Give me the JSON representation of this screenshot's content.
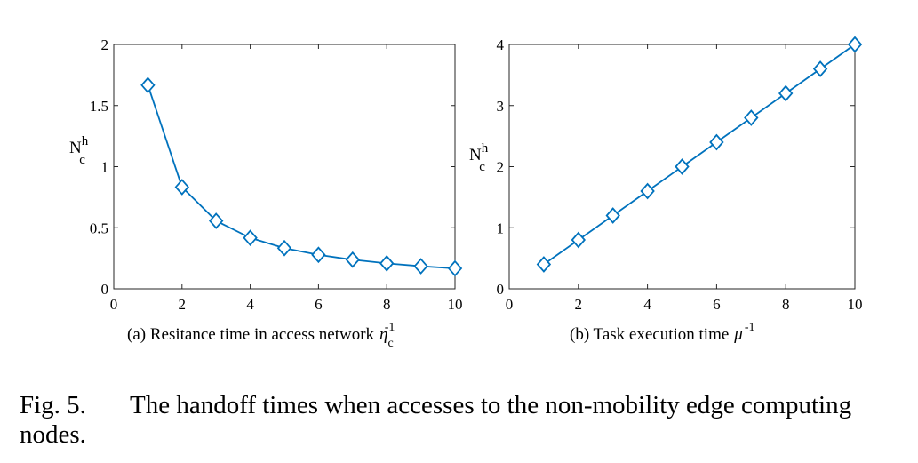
{
  "chart_data": [
    {
      "type": "line",
      "title": "",
      "sub_caption": "(a) Resitance time in access network",
      "xlabel_symbol": "η",
      "xlabel_subscript": "c",
      "xlabel_superscript": "-1",
      "ylabel_main": "N",
      "ylabel_superscript": "h",
      "ylabel_subscript": "c",
      "xlim": [
        0,
        10
      ],
      "ylim": [
        0,
        2
      ],
      "xticks": [
        0,
        2,
        4,
        6,
        8,
        10
      ],
      "yticks": [
        0,
        0.5,
        1,
        1.5,
        2
      ],
      "ytick_labels": [
        "0",
        "0.5",
        "1",
        "1.5",
        "2"
      ],
      "marker": "diamond",
      "color": "#0072BD",
      "series": [
        {
          "x": [
            1,
            2,
            3,
            4,
            5,
            6,
            7,
            8,
            9,
            10
          ],
          "values": [
            1.667,
            0.833,
            0.556,
            0.417,
            0.333,
            0.278,
            0.238,
            0.208,
            0.185,
            0.167
          ]
        }
      ]
    },
    {
      "type": "line",
      "title": "",
      "sub_caption": "(b) Task execution time",
      "xlabel_symbol": "μ",
      "xlabel_subscript": "",
      "xlabel_superscript": "-1",
      "ylabel_main": "N",
      "ylabel_superscript": "h",
      "ylabel_subscript": "c",
      "xlim": [
        0,
        10
      ],
      "ylim": [
        0,
        4
      ],
      "xticks": [
        0,
        2,
        4,
        6,
        8,
        10
      ],
      "yticks": [
        0,
        1,
        2,
        3,
        4
      ],
      "ytick_labels": [
        "0",
        "1",
        "2",
        "3",
        "4"
      ],
      "marker": "diamond",
      "color": "#0072BD",
      "series": [
        {
          "x": [
            1,
            2,
            3,
            4,
            5,
            6,
            7,
            8,
            9,
            10
          ],
          "values": [
            0.4,
            0.8,
            1.2,
            1.6,
            2.0,
            2.4,
            2.8,
            3.2,
            3.6,
            4.0
          ]
        }
      ]
    }
  ],
  "figure_caption": {
    "label": "Fig. 5.",
    "line1": "The handoff times when accesses to the non-mobility edge computing",
    "line2": "nodes."
  }
}
